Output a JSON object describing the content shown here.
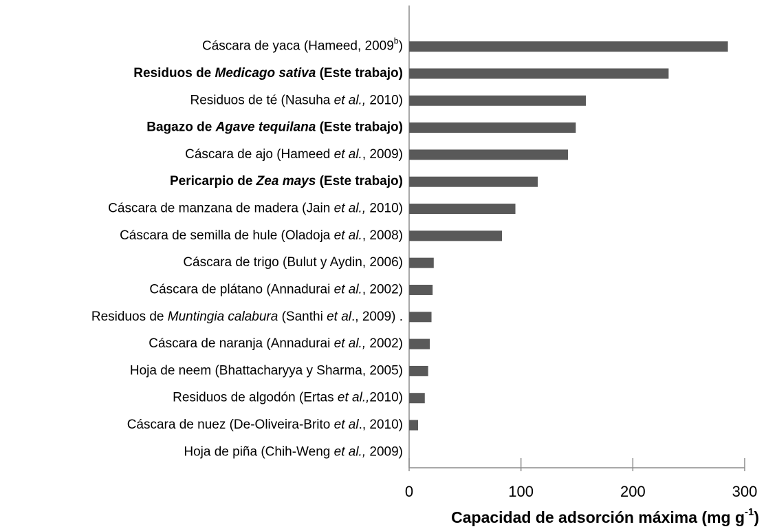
{
  "chart_data": {
    "type": "bar",
    "orientation": "horizontal",
    "color": "#595959",
    "xlabel": [
      {
        "text": "Capacidad de adsorción máxima (mg g",
        "style": "bold"
      },
      {
        "text": "-1",
        "style": "bold-superscript"
      },
      {
        "text": ")",
        "style": "bold"
      }
    ],
    "categories": [
      [
        {
          "text": "Cáscara de yaca (Hameed, 2009"
        },
        {
          "text": "b",
          "style": "superscript"
        },
        {
          "text": ")"
        }
      ],
      [
        {
          "text": "Residuos de ",
          "style": "bold"
        },
        {
          "text": "Medicago sativa",
          "style": "bold-italic"
        },
        {
          "text": " (Este trabajo)",
          "style": "bold"
        }
      ],
      [
        {
          "text": "Residuos de té (Nasuha "
        },
        {
          "text": "et al.,",
          "style": "italic"
        },
        {
          "text": " 2010)"
        }
      ],
      [
        {
          "text": "Bagazo de ",
          "style": "bold"
        },
        {
          "text": "Agave tequilana",
          "style": "bold-italic"
        },
        {
          "text": " (Este trabajo)",
          "style": "bold"
        }
      ],
      [
        {
          "text": "Cáscara de ajo (Hameed "
        },
        {
          "text": "et al.",
          "style": "italic"
        },
        {
          "text": ", 2009)"
        }
      ],
      [
        {
          "text": "Pericarpio de ",
          "style": "bold"
        },
        {
          "text": "Zea mays",
          "style": "bold-italic"
        },
        {
          "text": " (Este trabajo)",
          "style": "bold"
        }
      ],
      [
        {
          "text": "Cáscara de manzana de madera (Jain "
        },
        {
          "text": "et al.,",
          "style": "italic"
        },
        {
          "text": " 2010)"
        }
      ],
      [
        {
          "text": "Cáscara de semilla de hule (Oladoja "
        },
        {
          "text": "et al.",
          "style": "italic"
        },
        {
          "text": ", 2008)"
        }
      ],
      [
        {
          "text": "Cáscara de trigo (Bulut y Aydin, 2006)"
        }
      ],
      [
        {
          "text": "Cáscara de plátano (Annadurai "
        },
        {
          "text": "et al.",
          "style": "italic"
        },
        {
          "text": ", 2002)"
        }
      ],
      [
        {
          "text": "Residuos de "
        },
        {
          "text": "Muntingia calabura",
          "style": "italic"
        },
        {
          "text": " (Santhi "
        },
        {
          "text": "et al",
          "style": "italic"
        },
        {
          "text": "., 2009) ."
        }
      ],
      [
        {
          "text": "Cáscara de naranja (Annadurai "
        },
        {
          "text": "et al.,",
          "style": "italic"
        },
        {
          "text": " 2002)"
        }
      ],
      [
        {
          "text": "Hoja de neem (Bhattacharyya y Sharma, 2005)"
        }
      ],
      [
        {
          "text": "Residuos de algodón (Ertas "
        },
        {
          "text": "et al.,",
          "style": "italic"
        },
        {
          "text": "2010)"
        }
      ],
      [
        {
          "text": "Cáscara de nuez (De-Oliveira-Brito "
        },
        {
          "text": "et al",
          "style": "italic"
        },
        {
          "text": "., 2010)"
        }
      ],
      [
        {
          "text": "Hoja de piña (Chih-Weng "
        },
        {
          "text": "et al.,",
          "style": "italic"
        },
        {
          "text": " 2009)"
        }
      ]
    ],
    "values": [
      285,
      232,
      158,
      149,
      142,
      115,
      95,
      83,
      22,
      21,
      20,
      18.5,
      17,
      14,
      8,
      0
    ],
    "xlim": [
      0,
      300
    ],
    "xticks": [
      0,
      100,
      200,
      300
    ]
  }
}
